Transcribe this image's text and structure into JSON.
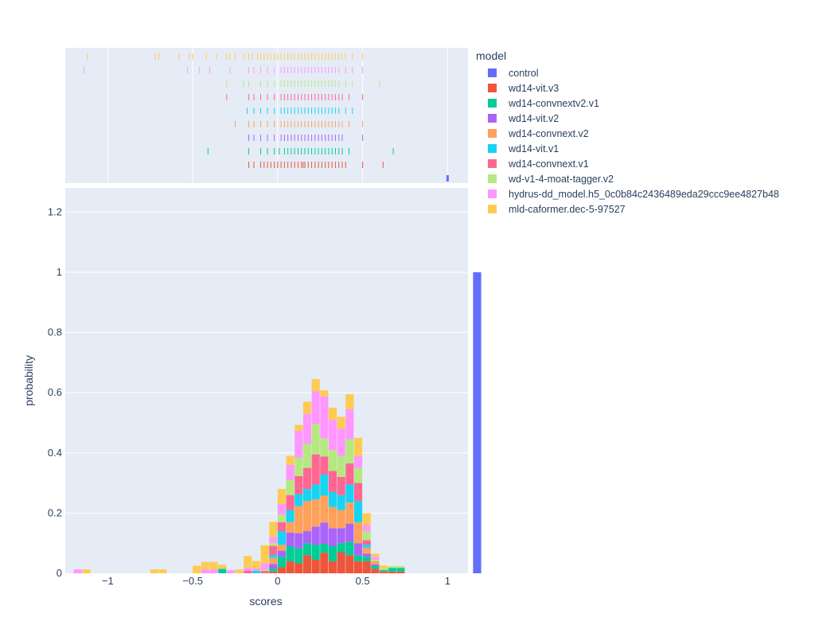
{
  "chart_data": {
    "type": "histogram",
    "barmode": "stack",
    "histnorm": "probability",
    "xlabel": "scores",
    "ylabel": "probability",
    "xlim": [
      -1.25,
      1.12
    ],
    "ylim": [
      0,
      1.28
    ],
    "yticks": [
      0,
      0.2,
      0.4,
      0.6,
      0.8,
      1,
      1.2
    ],
    "ytick_labels": [
      "0",
      "0.2",
      "0.4",
      "0.6",
      "0.8",
      "1",
      "1.2"
    ],
    "xticks": [
      -1,
      -0.5,
      0,
      0.5,
      1
    ],
    "xtick_labels": [
      "−1",
      "−0.5",
      "0",
      "0.5",
      "1"
    ],
    "marginal": "rug",
    "legend_title": "model",
    "legend_position": "right",
    "bin_width": 0.05,
    "bin_start": -1.2,
    "grid": true,
    "background_color": "#E5ECF6",
    "series": [
      {
        "name": "control",
        "color": "#636EFA",
        "bins": {
          "47": 1.0
        },
        "rug": [
          1.0
        ]
      },
      {
        "name": "wd14-vit.v3",
        "color": "#EF553B",
        "bins": {
          "23": 0.006,
          "24": 0.02,
          "25": 0.04,
          "26": 0.033,
          "27": 0.06,
          "28": 0.045,
          "29": 0.068,
          "30": 0.04,
          "31": 0.07,
          "32": 0.06,
          "33": 0.04,
          "34": 0.04,
          "35": 0.015,
          "36": 0.006,
          "37": 0.006,
          "38": 0.006
        },
        "rug": [
          -0.17,
          -0.14,
          -0.1,
          -0.08,
          -0.06,
          -0.04,
          -0.02,
          0.0,
          0.02,
          0.04,
          0.06,
          0.08,
          0.1,
          0.12,
          0.14,
          0.15,
          0.16,
          0.18,
          0.2,
          0.22,
          0.24,
          0.26,
          0.28,
          0.3,
          0.32,
          0.34,
          0.36,
          0.38,
          0.4,
          0.5,
          0.62
        ]
      },
      {
        "name": "wd14-convnextv2.v1",
        "color": "#00CC96",
        "bins": {
          "17": 0.015,
          "23": 0.01,
          "24": 0.035,
          "25": 0.05,
          "26": 0.05,
          "27": 0.04,
          "28": 0.05,
          "29": 0.03,
          "30": 0.05,
          "31": 0.03,
          "32": 0.045,
          "33": 0.02,
          "34": 0.015,
          "35": 0.01,
          "36": 0.005,
          "37": 0.012,
          "38": 0.012
        },
        "rug": [
          -0.41,
          -0.17,
          -0.1,
          -0.06,
          -0.02,
          0.01,
          0.04,
          0.06,
          0.08,
          0.1,
          0.12,
          0.14,
          0.16,
          0.18,
          0.2,
          0.22,
          0.24,
          0.26,
          0.28,
          0.3,
          0.32,
          0.34,
          0.36,
          0.38,
          0.42,
          0.68
        ]
      },
      {
        "name": "wd14-vit.v2",
        "color": "#AB63FA",
        "bins": {
          "23": 0.015,
          "24": 0.02,
          "25": 0.045,
          "26": 0.05,
          "27": 0.04,
          "28": 0.06,
          "29": 0.07,
          "30": 0.06,
          "31": 0.05,
          "32": 0.06,
          "33": 0.04,
          "34": 0.01,
          "35": 0.005
        },
        "rug": [
          -0.17,
          -0.14,
          -0.1,
          -0.06,
          -0.02,
          0.02,
          0.04,
          0.06,
          0.08,
          0.1,
          0.12,
          0.14,
          0.16,
          0.18,
          0.2,
          0.22,
          0.24,
          0.26,
          0.28,
          0.3,
          0.32,
          0.34,
          0.36,
          0.38,
          0.5
        ]
      },
      {
        "name": "wd14-convnext.v2",
        "color": "#FFA15A",
        "bins": {
          "23": 0.02,
          "24": 0.02,
          "25": 0.035,
          "26": 0.09,
          "27": 0.1,
          "28": 0.09,
          "29": 0.09,
          "30": 0.07,
          "31": 0.06,
          "32": 0.07,
          "33": 0.07,
          "34": 0.02,
          "35": 0.01
        },
        "rug": [
          -0.25,
          -0.17,
          -0.14,
          -0.1,
          -0.06,
          -0.02,
          0.02,
          0.04,
          0.06,
          0.08,
          0.1,
          0.12,
          0.14,
          0.16,
          0.18,
          0.2,
          0.22,
          0.24,
          0.26,
          0.28,
          0.3,
          0.32,
          0.34,
          0.36,
          0.38,
          0.42,
          0.5
        ]
      },
      {
        "name": "wd14-vit.v1",
        "color": "#19D3F3",
        "bins": {
          "21": 0.008,
          "23": 0.01,
          "24": 0.045,
          "25": 0.04,
          "26": 0.04,
          "27": 0.04,
          "28": 0.05,
          "29": 0.07,
          "30": 0.05,
          "31": 0.05,
          "32": 0.06,
          "33": 0.07,
          "34": 0.01
        },
        "rug": [
          -0.18,
          -0.14,
          -0.1,
          -0.06,
          -0.02,
          0.02,
          0.04,
          0.06,
          0.08,
          0.1,
          0.12,
          0.14,
          0.16,
          0.18,
          0.2,
          0.22,
          0.24,
          0.26,
          0.28,
          0.3,
          0.32,
          0.34,
          0.36,
          0.4,
          0.44
        ]
      },
      {
        "name": "wd14-convnext.v1",
        "color": "#FF6692",
        "bins": {
          "20": 0.008,
          "22": 0.008,
          "23": 0.03,
          "24": 0.03,
          "25": 0.05,
          "26": 0.06,
          "27": 0.07,
          "28": 0.1,
          "29": 0.06,
          "30": 0.07,
          "31": 0.06,
          "32": 0.07,
          "33": 0.06,
          "34": 0.015
        },
        "rug": [
          -0.3,
          -0.17,
          -0.14,
          -0.1,
          -0.06,
          -0.02,
          0.02,
          0.04,
          0.06,
          0.08,
          0.1,
          0.12,
          0.14,
          0.16,
          0.18,
          0.2,
          0.22,
          0.24,
          0.26,
          0.28,
          0.3,
          0.32,
          0.34,
          0.36,
          0.38,
          0.42,
          0.5
        ]
      },
      {
        "name": "wd-v1-4-moat-tagger.v2",
        "color": "#B6E880",
        "bins": {
          "22": 0.005,
          "23": 0.01,
          "24": 0.025,
          "25": 0.05,
          "26": 0.06,
          "27": 0.08,
          "28": 0.1,
          "29": 0.06,
          "30": 0.07,
          "31": 0.07,
          "32": 0.08,
          "33": 0.05,
          "34": 0.03,
          "35": 0.005,
          "36": 0.005,
          "37": 0.006,
          "38": 0.006
        },
        "rug": [
          -0.3,
          -0.2,
          -0.17,
          -0.1,
          -0.06,
          -0.02,
          0.02,
          0.04,
          0.06,
          0.08,
          0.1,
          0.12,
          0.14,
          0.16,
          0.18,
          0.2,
          0.22,
          0.24,
          0.26,
          0.28,
          0.3,
          0.32,
          0.34,
          0.36,
          0.4,
          0.44,
          0.6
        ]
      },
      {
        "name": "hydrus-dd_model.h5_0c0b84c2436489eda29ccc9ee4827b48",
        "color": "#FF97FF",
        "bins": {
          "0": 0.013,
          "15": 0.013,
          "16": 0.013,
          "18": 0.01,
          "20": 0.01,
          "21": 0.008,
          "22": 0.02,
          "23": 0.02,
          "24": 0.035,
          "25": 0.05,
          "26": 0.09,
          "27": 0.1,
          "28": 0.11,
          "29": 0.14,
          "30": 0.1,
          "31": 0.09,
          "32": 0.1,
          "33": 0.04,
          "34": 0.02,
          "35": 0.01
        },
        "rug": [
          -1.14,
          -0.53,
          -0.46,
          -0.4,
          -0.28,
          -0.17,
          -0.14,
          -0.1,
          -0.06,
          -0.02,
          0.02,
          0.04,
          0.06,
          0.08,
          0.1,
          0.12,
          0.14,
          0.16,
          0.18,
          0.2,
          0.22,
          0.24,
          0.26,
          0.28,
          0.3,
          0.32,
          0.34,
          0.36,
          0.4,
          0.44,
          0.5
        ]
      },
      {
        "name": "mld-caformer.dec-5-97527",
        "color": "#FECB52",
        "bins": {
          "1": 0.013,
          "9": 0.013,
          "10": 0.013,
          "14": 0.025,
          "15": 0.025,
          "16": 0.025,
          "17": 0.013,
          "19": 0.013,
          "20": 0.04,
          "21": 0.025,
          "22": 0.06,
          "23": 0.05,
          "24": 0.05,
          "25": 0.03,
          "26": 0.02,
          "27": 0.04,
          "28": 0.04,
          "29": 0.02,
          "30": 0.04,
          "31": 0.04,
          "32": 0.05,
          "33": 0.06,
          "34": 0.04,
          "35": 0.01,
          "36": 0.01
        },
        "rug": [
          -1.12,
          -0.72,
          -0.7,
          -0.58,
          -0.52,
          -0.5,
          -0.42,
          -0.36,
          -0.3,
          -0.28,
          -0.25,
          -0.2,
          -0.17,
          -0.15,
          -0.12,
          -0.1,
          -0.08,
          -0.06,
          -0.04,
          -0.02,
          0.0,
          0.02,
          0.04,
          0.06,
          0.08,
          0.1,
          0.12,
          0.14,
          0.16,
          0.18,
          0.2,
          0.22,
          0.24,
          0.26,
          0.28,
          0.3,
          0.32,
          0.34,
          0.36,
          0.38,
          0.4,
          0.44,
          0.5
        ]
      }
    ]
  }
}
